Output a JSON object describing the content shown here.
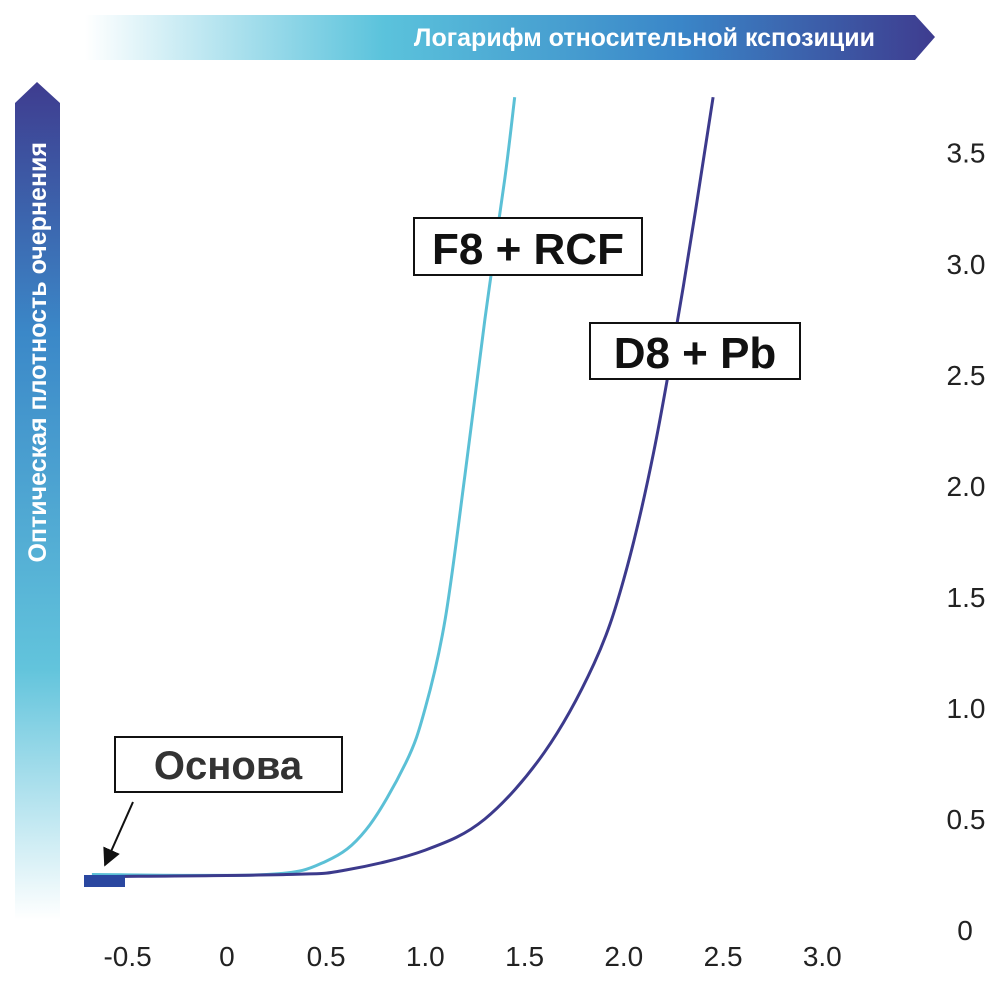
{
  "chart_data": {
    "type": "line",
    "xlabel": "Логарифм относительной кспозиции",
    "ylabel": "Оптическая плотность очернения",
    "xlim": [
      -0.75,
      3.2
    ],
    "ylim": [
      0,
      3.85
    ],
    "x_ticks": [
      "-0.5",
      "0",
      "0.5",
      "1.0",
      "1.5",
      "2.0",
      "2.5",
      "3.0"
    ],
    "x_tick_values": [
      -0.5,
      0,
      0.5,
      1.0,
      1.5,
      2.0,
      2.5,
      3.0
    ],
    "y_ticks": [
      "0",
      "0.5",
      "1.0",
      "1.5",
      "2.0",
      "2.5",
      "3.0",
      "3.5"
    ],
    "y_tick_values": [
      0,
      0.5,
      1.0,
      1.5,
      2.0,
      2.5,
      3.0,
      3.5
    ],
    "grid": false,
    "series": [
      {
        "name": "F8 + RCF",
        "color": "#5bc0d6",
        "points": [
          [
            -0.68,
            0.25
          ],
          [
            0.2,
            0.25
          ],
          [
            0.5,
            0.31
          ],
          [
            0.7,
            0.45
          ],
          [
            0.9,
            0.75
          ],
          [
            1.0,
            1.0
          ],
          [
            1.1,
            1.4
          ],
          [
            1.2,
            2.05
          ],
          [
            1.3,
            2.75
          ],
          [
            1.4,
            3.38
          ],
          [
            1.45,
            3.75
          ]
        ]
      },
      {
        "name": "D8 + Pb",
        "color": "#3c3a8c",
        "points": [
          [
            -0.68,
            0.24
          ],
          [
            0.3,
            0.25
          ],
          [
            0.6,
            0.27
          ],
          [
            1.0,
            0.36
          ],
          [
            1.3,
            0.5
          ],
          [
            1.6,
            0.8
          ],
          [
            1.85,
            1.2
          ],
          [
            2.0,
            1.58
          ],
          [
            2.15,
            2.15
          ],
          [
            2.3,
            2.9
          ],
          [
            2.45,
            3.75
          ]
        ]
      }
    ],
    "annotations": [
      {
        "text": "F8 + RCF"
      },
      {
        "text": "D8 + Pb"
      },
      {
        "text": "Основа"
      }
    ],
    "base_marker": {
      "label": "Основа",
      "color": "#2a47a0"
    }
  }
}
